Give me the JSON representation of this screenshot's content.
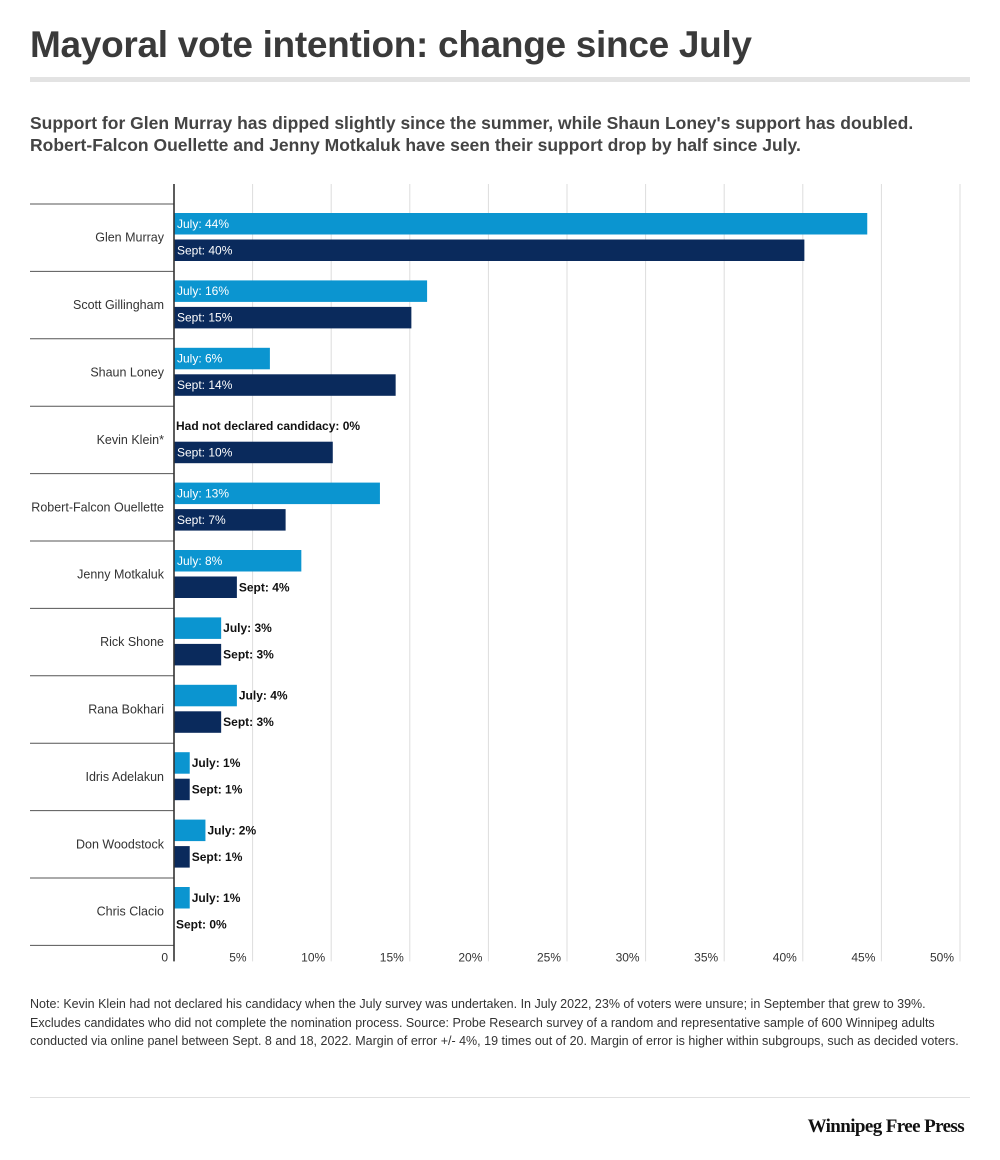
{
  "header": {
    "title": "Mayoral vote intention: change since July",
    "subtitle": "Support for Glen Murray has dipped slightly since the summer, while Shaun Loney's support has doubled. Robert-Falcon Ouellette and Jenny Motkaluk have seen their support drop by half since July."
  },
  "footer": {
    "note": "Note: Kevin Klein had not declared his candidacy when the July survey was undertaken. In July 2022, 23% of voters were unsure; in September that grew to 39%. Excludes candidates who did not complete the nomination process. Source: Probe Research survey of a random and representative sample of 600 Winnipeg adults conducted via online panel between Sept. 8 and 18, 2022.  Margin of error +/- 4%, 19 times out of 20.  Margin of error is higher within subgroups, such as decided voters.",
    "logo_text": "Winnipeg Free Press"
  },
  "colors": {
    "july": "#0b95d0",
    "sept": "#0a2a5c",
    "gridline": "#dddddd",
    "separator": "#555555"
  },
  "chart_data": {
    "type": "bar",
    "orientation": "horizontal",
    "title": "Mayoral vote intention: change since July",
    "xlim": [
      0,
      50
    ],
    "x_ticks": [
      "0",
      "5%",
      "10%",
      "15%",
      "20%",
      "25%",
      "30%",
      "35%",
      "40%",
      "45%",
      "50%"
    ],
    "x_tick_values": [
      0,
      5,
      10,
      15,
      20,
      25,
      30,
      35,
      40,
      45,
      50
    ],
    "grid": true,
    "categories": [
      "Glen Murray",
      "Scott Gillingham",
      "Shaun Loney",
      "Kevin Klein*",
      "Robert-Falcon Ouellette",
      "Jenny Motkaluk",
      "Rick Shone",
      "Rana Bokhari",
      "Idris Adelakun",
      "Don Woodstock",
      "Chris Clacio"
    ],
    "series": [
      {
        "name": "July",
        "values": [
          44.1,
          16.1,
          6.1,
          0,
          13.1,
          8.1,
          3.0,
          4.0,
          1.0,
          2.0,
          1.0
        ],
        "labels": [
          "July: 44%",
          "July: 16%",
          "July: 6%",
          "Had not declared candidacy: 0%",
          "July: 13%",
          "July: 8%",
          "July: 3%",
          "July: 4%",
          "July: 1%",
          "July: 2%",
          "July: 1%"
        ]
      },
      {
        "name": "Sept",
        "values": [
          40.1,
          15.1,
          14.1,
          10.1,
          7.1,
          4.0,
          3.0,
          3.0,
          1.0,
          1.0,
          0
        ],
        "labels": [
          "Sept: 40%",
          "Sept: 15%",
          "Sept: 14%",
          "Sept: 10%",
          "Sept: 7%",
          "Sept: 4%",
          "Sept: 3%",
          "Sept: 3%",
          "Sept: 1%",
          "Sept: 1%",
          "Sept: 0%"
        ]
      }
    ]
  }
}
